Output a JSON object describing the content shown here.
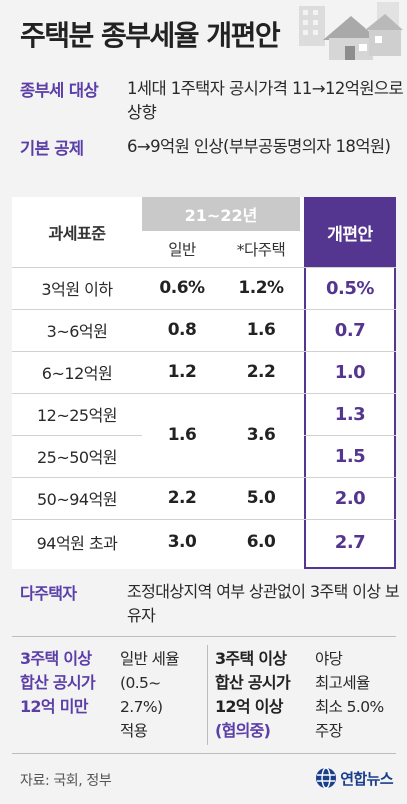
{
  "title": "주택분 종부세율 개편안",
  "info": [
    {
      "label": "종부세 대상",
      "text": "1세대 1주택자 공시가격 11→12억원으로 상향"
    },
    {
      "label": "기본 공제",
      "text": "6→9억원 인상(부부공동명의자 18억원)"
    }
  ],
  "table": {
    "header_label": "과세표준",
    "header_group": "21~22년",
    "sub_general": "일반",
    "sub_multi": "*다주택",
    "header_new": "개편안",
    "rows": [
      {
        "label": "3억원 이하",
        "general": "0.6%",
        "multi": "1.2%",
        "new": "0.5%"
      },
      {
        "label": "3~6억원",
        "general": "0.8",
        "multi": "1.6",
        "new": "0.7"
      },
      {
        "label": "6~12억원",
        "general": "1.2",
        "multi": "2.2",
        "new": "1.0"
      },
      {
        "label": "12~25억원",
        "general": "1.6",
        "multi": "3.6",
        "new": "1.3"
      },
      {
        "label": "25~50억원",
        "general": "",
        "multi": "",
        "new": "1.5"
      },
      {
        "label": "50~94억원",
        "general": "2.2",
        "multi": "5.0",
        "new": "2.0"
      },
      {
        "label": "94억원 초과",
        "general": "3.0",
        "multi": "6.0",
        "new": "2.7"
      }
    ]
  },
  "multi_owner": {
    "label": "다주택자",
    "text": "조정대상지역 여부 상관없이 3주택 이상 보유자"
  },
  "bottom": {
    "left_label": [
      "3주택 이상",
      "합산 공시가",
      "12억 미만"
    ],
    "left_text": [
      "일반 세율",
      "(0.5~",
      "2.7%)",
      "적용"
    ],
    "right_label": [
      "3주택 이상",
      "합산 공시가",
      "12억 이상"
    ],
    "right_label_note": "(협의중)",
    "right_text": [
      "야당",
      "최고세율",
      "최소 5.0%",
      "주장"
    ]
  },
  "source": "자료: 국회, 정부",
  "logo": "연합뉴스",
  "colors": {
    "accent": "#54358f",
    "label": "#5b3ea8",
    "header_gray": "#c9c9c9"
  }
}
